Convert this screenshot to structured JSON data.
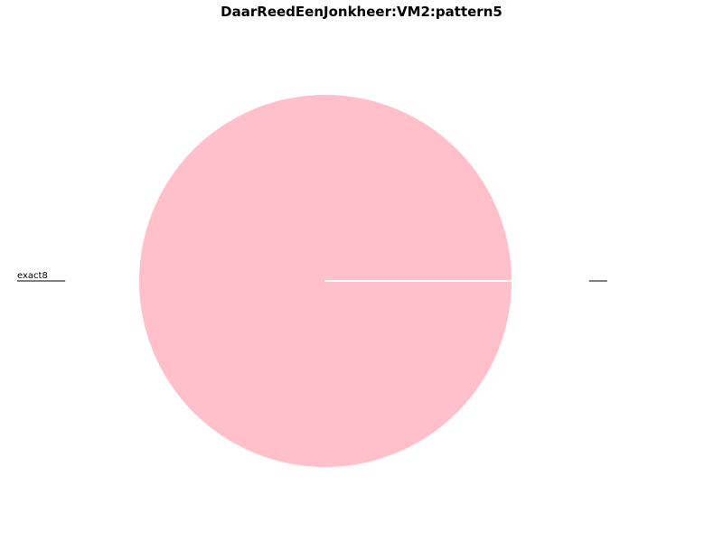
{
  "chart_data": {
    "type": "pie",
    "title": "DaarReedEenJonkheer:VM2:pattern5",
    "slices": [
      {
        "label": "",
        "value": 0.0001,
        "color": "#ffc0cb"
      },
      {
        "label": "exact8",
        "value": 99.9999,
        "color": "#ffc0cb"
      }
    ],
    "start_angle_deg": 0,
    "direction": "counterclockwise"
  }
}
